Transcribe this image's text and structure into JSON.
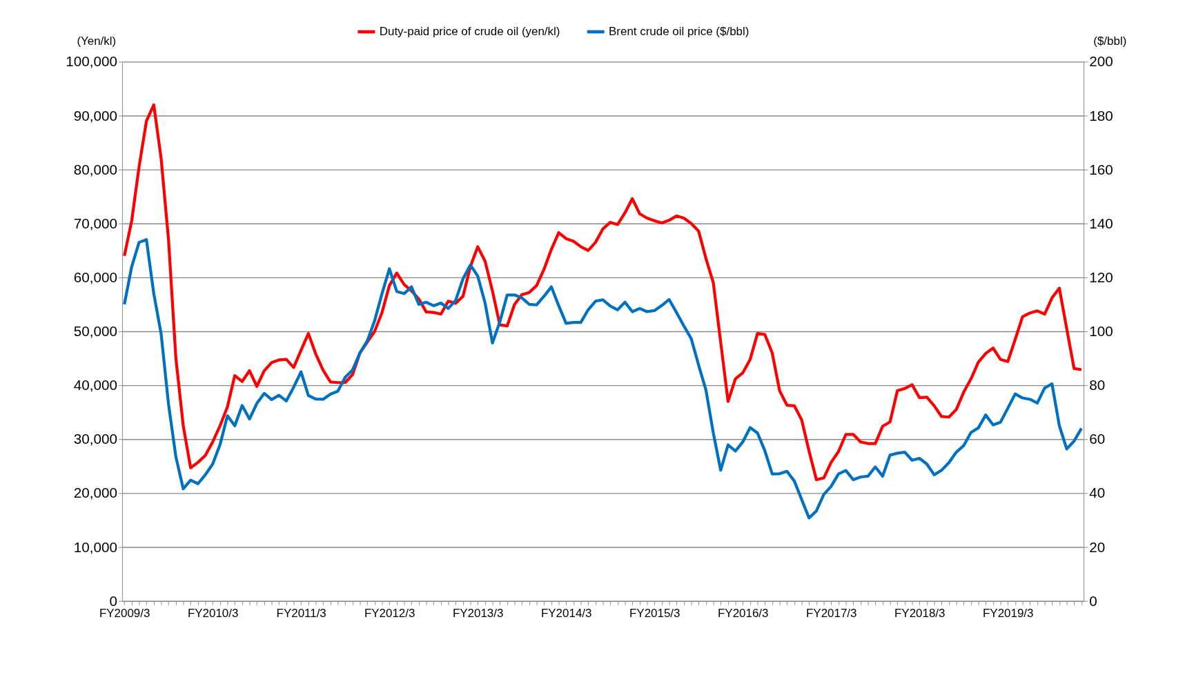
{
  "chart_data": {
    "type": "line",
    "ylabel": "(Yen/kl)",
    "y2label": "($/bbl)",
    "categories": [
      "FY2009/3",
      null,
      null,
      null,
      null,
      null,
      null,
      null,
      null,
      null,
      null,
      null,
      "FY2010/3",
      null,
      null,
      null,
      null,
      null,
      null,
      null,
      null,
      null,
      null,
      null,
      "FY2011/3",
      null,
      null,
      null,
      null,
      null,
      null,
      null,
      null,
      null,
      null,
      null,
      "FY2012/3",
      null,
      null,
      null,
      null,
      null,
      null,
      null,
      null,
      null,
      null,
      null,
      "FY2013/3",
      null,
      null,
      null,
      null,
      null,
      null,
      null,
      null,
      null,
      null,
      null,
      "FY2014/3",
      null,
      null,
      null,
      null,
      null,
      null,
      null,
      null,
      null,
      null,
      null,
      "FY2015/3",
      null,
      null,
      null,
      null,
      null,
      null,
      null,
      null,
      null,
      null,
      null,
      "FY2016/3",
      null,
      null,
      null,
      null,
      null,
      null,
      null,
      null,
      null,
      null,
      null,
      "FY2017/3",
      null,
      null,
      null,
      null,
      null,
      null,
      null,
      null,
      null,
      null,
      null,
      "FY2018/3",
      null,
      null,
      null,
      null,
      null,
      null,
      null,
      null,
      null,
      null,
      null,
      "FY2019/3",
      null,
      null,
      null,
      null,
      null,
      null,
      null,
      null,
      null,
      null
    ],
    "series": [
      {
        "name": "Duty-paid price of crude oil (yen/kl)",
        "color": "#ff0000",
        "values": [
          64000,
          70500,
          80500,
          89000,
          92000,
          82000,
          67000,
          45000,
          32500,
          24700,
          25700,
          27000,
          29500,
          32500,
          36000,
          41800,
          40700,
          42700,
          39800,
          42700,
          44200,
          44700,
          44800,
          43300,
          46500,
          49600,
          45800,
          42800,
          40600,
          40500,
          40500,
          42000,
          46000,
          48000,
          50000,
          53500,
          58500,
          60800,
          58700,
          57500,
          56000,
          53600,
          53500,
          53200,
          55600,
          55200,
          56500,
          62000,
          65700,
          63000,
          57500,
          51200,
          51000,
          55000,
          56800,
          57200,
          58500,
          61500,
          65200,
          68300,
          67200,
          66700,
          65700,
          65000,
          66500,
          69000,
          70200,
          69800,
          72000,
          74600,
          71800,
          71000,
          70500,
          70100,
          70600,
          71400,
          71000,
          70000,
          68600,
          63500,
          59000,
          48000,
          37000,
          41200,
          42300,
          44800,
          49600,
          49400,
          46000,
          39000,
          36300,
          36200,
          33600,
          27800,
          22500,
          22800,
          25700,
          27700,
          30900,
          30900,
          29500,
          29200,
          29200,
          32400,
          33200,
          39000,
          39400,
          40100,
          37700,
          37800,
          36200,
          34200,
          34100,
          35500,
          38700,
          41200,
          44300,
          45900,
          46900,
          44800,
          44400,
          48500,
          52700,
          53400,
          53800,
          53200,
          56200,
          58000,
          50500,
          43100,
          42900
        ]
      },
      {
        "name": "Brent crude oil price ($/bbl)",
        "color": "#0070c0",
        "axis": "y2",
        "values": [
          110,
          124,
          133,
          134,
          114,
          99,
          73,
          53.5,
          41.6,
          44.8,
          43.5,
          46.8,
          50.8,
          58,
          68.7,
          65,
          72.5,
          67.5,
          73.3,
          77,
          74.7,
          76.3,
          74.2,
          79.3,
          85,
          76.2,
          74.9,
          74.8,
          76.7,
          77.8,
          83,
          85.7,
          92,
          96.5,
          104,
          114,
          123.2,
          114.8,
          114,
          116.5,
          110,
          110.8,
          109.5,
          110.5,
          108.5,
          111.5,
          119.5,
          124.6,
          120.5,
          110.5,
          95.7,
          103.5,
          113.5,
          113.5,
          112.4,
          110,
          109.8,
          113,
          116.5,
          109.5,
          103,
          103.3,
          103.3,
          108,
          111.2,
          111.7,
          109.4,
          108,
          110.8,
          107.3,
          108.5,
          107.3,
          107.7,
          109.6,
          111.8,
          107,
          102,
          97.3,
          87.5,
          78.2,
          62.3,
          48.5,
          57.9,
          55.6,
          59,
          64.3,
          62.3,
          55.7,
          47.1,
          47.2,
          48.1,
          44.5,
          37.6,
          30.8,
          33.4,
          39.5,
          42.5,
          47.1,
          48.4,
          45,
          46,
          46.3,
          49.7,
          46.3,
          54.1,
          54.8,
          55.2,
          52.2,
          52.9,
          50.8,
          46.8,
          48.5,
          51.3,
          55.2,
          57.6,
          62.5,
          64.2,
          69,
          65.3,
          66.3,
          71.5,
          76.8,
          75.3,
          74.8,
          73.4,
          79,
          80.5,
          65,
          56.4,
          59.3,
          64
        ]
      }
    ],
    "ylim": [
      0,
      100000
    ],
    "yticks": [
      0,
      {
        "value": 10000,
        "label": "10,000"
      },
      {
        "value": 20000,
        "label": "20,000"
      },
      {
        "value": 30000,
        "label": "30,000"
      },
      {
        "value": 40000,
        "label": "40,000"
      },
      {
        "value": 50000,
        "label": "50,000"
      },
      {
        "value": 60000,
        "label": "60,000"
      },
      {
        "value": 70000,
        "label": "70,000"
      },
      {
        "value": 80000,
        "label": "80,000"
      },
      {
        "value": 90000,
        "label": "90,000"
      },
      {
        "value": 100000,
        "label": "100,000"
      }
    ],
    "y2lim": [
      0,
      200
    ],
    "y2ticks": [
      0,
      20,
      40,
      60,
      80,
      100,
      120,
      140,
      160,
      180,
      200
    ],
    "grid": "y",
    "legend": "top",
    "marker": "none",
    "line_style": "solid"
  }
}
